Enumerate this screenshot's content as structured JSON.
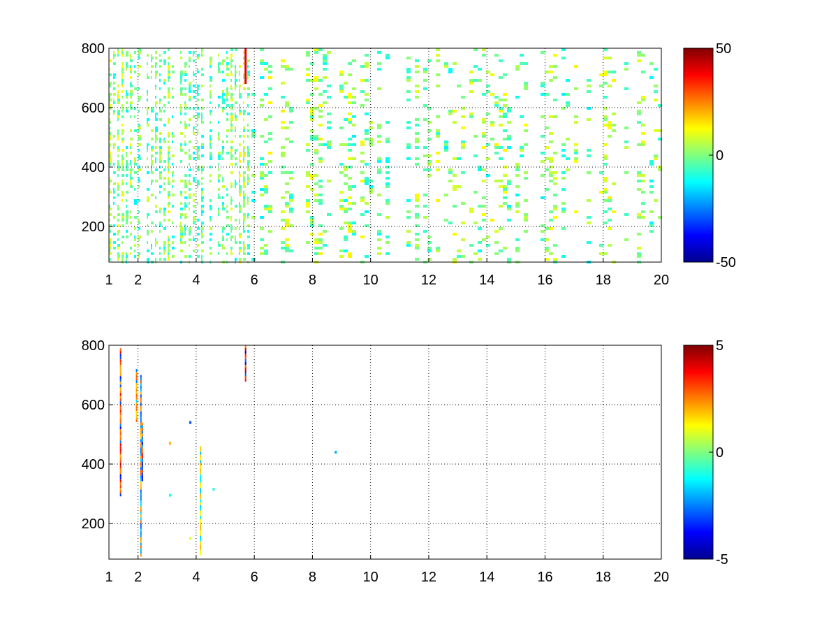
{
  "chart_data": [
    {
      "type": "heatmap",
      "title": "",
      "xlabel": "",
      "ylabel": "",
      "xlim": [
        1,
        20
      ],
      "ylim": [
        80,
        800
      ],
      "xticks": [
        1,
        2,
        4,
        6,
        8,
        10,
        12,
        14,
        16,
        18,
        20
      ],
      "xtick_labels": [
        "1",
        "2",
        "4",
        "6",
        "8",
        "10",
        "12",
        "14",
        "16",
        "18",
        "20"
      ],
      "yticks": [
        200,
        400,
        600,
        800
      ],
      "ytick_labels": [
        "200",
        "400",
        "600",
        "800"
      ],
      "grid": true,
      "colormap": "jet",
      "clim": [
        -50,
        50
      ],
      "colorbar_ticks": [
        -50,
        0,
        50
      ],
      "colorbar_labels": [
        "-50",
        "0",
        "50"
      ],
      "fill_density": 0.8,
      "description_regions": [
        {
          "x_range": [
            1,
            5.8
          ],
          "density": "high",
          "typical_value": 0
        },
        {
          "x_range": [
            5.8,
            20
          ],
          "density": "medium",
          "typical_value": 0
        }
      ],
      "highlight": [
        {
          "x": 5.7,
          "y_range": [
            680,
            800
          ],
          "value": 40
        }
      ]
    },
    {
      "type": "heatmap",
      "title": "",
      "xlabel": "",
      "ylabel": "",
      "xlim": [
        1,
        20
      ],
      "ylim": [
        80,
        800
      ],
      "xticks": [
        1,
        2,
        4,
        6,
        8,
        10,
        12,
        14,
        16,
        18,
        20
      ],
      "xtick_labels": [
        "1",
        "2",
        "4",
        "6",
        "8",
        "10",
        "12",
        "14",
        "16",
        "18",
        "20"
      ],
      "yticks": [
        200,
        400,
        600,
        800
      ],
      "ytick_labels": [
        "200",
        "400",
        "600",
        "800"
      ],
      "grid": true,
      "colormap": "jet",
      "clim": [
        -5,
        5
      ],
      "colorbar_ticks": [
        -5,
        0,
        5
      ],
      "colorbar_labels": [
        "-5",
        "0",
        "5"
      ],
      "sparse_lines": [
        {
          "x": 1.4,
          "y_range": [
            300,
            790
          ],
          "value": 4
        },
        {
          "x": 1.95,
          "y_range": [
            550,
            720
          ],
          "value": 3
        },
        {
          "x": 2.1,
          "y_range": [
            90,
            700
          ],
          "value": -3
        },
        {
          "x": 2.15,
          "y_range": [
            350,
            540
          ],
          "value": -4
        },
        {
          "x": 4.15,
          "y_range": [
            100,
            460
          ],
          "value": 2
        },
        {
          "x": 5.7,
          "y_range": [
            685,
            800
          ],
          "value": 5
        }
      ],
      "sparse_points": [
        {
          "x": 3.1,
          "y": 470,
          "value": 2
        },
        {
          "x": 3.8,
          "y": 540,
          "value": -3
        },
        {
          "x": 3.8,
          "y": 150,
          "value": 1
        },
        {
          "x": 4.6,
          "y": 315,
          "value": -1
        },
        {
          "x": 8.8,
          "y": 440,
          "value": -2
        },
        {
          "x": 3.1,
          "y": 295,
          "value": -1
        }
      ]
    }
  ]
}
